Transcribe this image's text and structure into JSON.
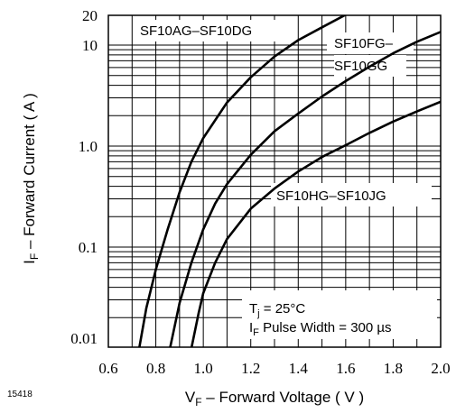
{
  "figure_id": "15418",
  "chart_data": {
    "type": "line",
    "title": "",
    "xlabel": {
      "main": "V",
      "sub": "F",
      "rest": " – Forward Voltage ( V )"
    },
    "ylabel": {
      "main": "I",
      "sub": "F",
      "rest": " – Forward Current ( A )"
    },
    "x_scale": "linear",
    "y_scale": "log",
    "xlim": [
      0.6,
      2.0
    ],
    "ylim": [
      0.005,
      20
    ],
    "grid": true,
    "x_ticks": [
      0.6,
      0.8,
      1.0,
      1.2,
      1.4,
      1.6,
      1.8,
      2.0
    ],
    "x_tick_labels": [
      "0.6",
      "0.8",
      "1.0",
      "1.2",
      "1.4",
      "1.6",
      "1.8",
      "2.0"
    ],
    "y_ticks": [
      0.01,
      0.1,
      1.0,
      10,
      20
    ],
    "y_tick_labels": [
      "0.01",
      "0.1",
      "1.0",
      "10",
      "20"
    ],
    "series": [
      {
        "name": "SF10AG–SF10DG",
        "x": [
          0.7,
          0.73,
          0.76,
          0.8,
          0.85,
          0.9,
          0.95,
          1.0,
          1.1,
          1.2,
          1.3,
          1.4,
          1.5,
          1.6
        ],
        "y": [
          0.005,
          0.01,
          0.025,
          0.06,
          0.15,
          0.35,
          0.7,
          1.2,
          2.7,
          4.8,
          7.7,
          11.2,
          15.0,
          20.0
        ]
      },
      {
        "name": "SF10FG–SF10GG",
        "x": [
          0.83,
          0.86,
          0.9,
          0.95,
          1.0,
          1.05,
          1.1,
          1.2,
          1.3,
          1.4,
          1.5,
          1.6,
          1.7,
          1.8,
          1.9,
          2.0
        ],
        "y": [
          0.005,
          0.01,
          0.028,
          0.07,
          0.15,
          0.27,
          0.42,
          0.82,
          1.4,
          2.1,
          3.1,
          4.4,
          6.1,
          8.3,
          10.8,
          13.5
        ]
      },
      {
        "name": "SF10HG–SF10JG",
        "x": [
          0.93,
          0.95,
          0.98,
          1.0,
          1.05,
          1.1,
          1.2,
          1.3,
          1.4,
          1.5,
          1.6,
          1.7,
          1.8,
          1.9,
          2.0
        ],
        "y": [
          0.005,
          0.01,
          0.022,
          0.035,
          0.07,
          0.12,
          0.24,
          0.38,
          0.56,
          0.78,
          1.02,
          1.35,
          1.75,
          2.2,
          2.75
        ]
      }
    ],
    "curve_labels": [
      {
        "lines": [
          "SF10AG–SF10DG"
        ]
      },
      {
        "lines": [
          "SF10FG–",
          "SF10GG"
        ]
      },
      {
        "lines": [
          "SF10HG–SF10JG"
        ]
      }
    ],
    "conditions": {
      "line1": {
        "main": "T",
        "sub": "j",
        "rest": " = 25°C"
      },
      "line2": {
        "main": "I",
        "sub": "F",
        "rest": " Pulse Width = 300 µs"
      }
    }
  }
}
